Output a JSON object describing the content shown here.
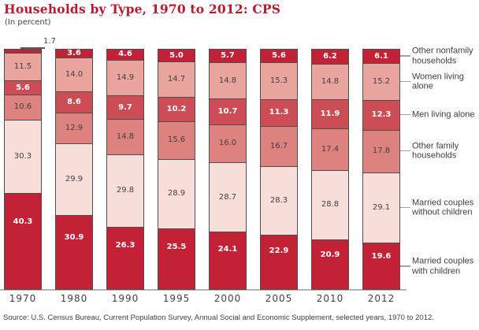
{
  "colors": {
    "title_red": "#b81a2e",
    "dark_red": "#c32136",
    "medium_red": "#cc4d55",
    "medium_salmon": "#dd827e",
    "light_salmon": "#eaa49e",
    "pale_pink": "#f8ded9",
    "axis_gray": "#b5b5b5",
    "text_gray": "#414042"
  },
  "chart_data": {
    "type": "bar",
    "stacked": true,
    "title": "Households by Type, 1970 to 2012: CPS",
    "subtitle": "(In percent)",
    "source": "Source: U.S. Census Bureau, Current Population Survey, Annual Social and Economic Supplement, selected years, 1970 to 2012.",
    "categories": [
      "1970",
      "1980",
      "1990",
      "1995",
      "2000",
      "2005",
      "2010",
      "2012"
    ],
    "ylim": [
      0,
      100
    ],
    "grid": false,
    "legend_position": "right",
    "series": [
      {
        "name": "Married couples with children",
        "legend_lines": [
          "Married couples",
          "with children"
        ],
        "color": "#c32136",
        "label_color": "#ffffff",
        "values": [
          40.3,
          30.9,
          26.3,
          25.5,
          24.1,
          22.9,
          20.9,
          19.6
        ]
      },
      {
        "name": "Married couples without children",
        "legend_lines": [
          "Married couples",
          "without children"
        ],
        "color": "#f8ded9",
        "label_color": "#414042",
        "values": [
          30.3,
          29.9,
          29.8,
          28.9,
          28.7,
          28.3,
          28.8,
          29.1
        ]
      },
      {
        "name": "Other family households",
        "legend_lines": [
          "Other family",
          "households"
        ],
        "color": "#dd827e",
        "label_color": "#414042",
        "values": [
          10.6,
          12.9,
          14.8,
          15.6,
          16.0,
          16.7,
          17.4,
          17.8
        ]
      },
      {
        "name": "Men living alone",
        "legend_lines": [
          "Men living alone"
        ],
        "color": "#cc4d55",
        "label_color": "#ffffff",
        "values": [
          5.6,
          8.6,
          9.7,
          10.2,
          10.7,
          11.3,
          11.9,
          12.3
        ]
      },
      {
        "name": "Women living alone",
        "legend_lines": [
          "Women living",
          "alone"
        ],
        "color": "#eaa49e",
        "label_color": "#414042",
        "values": [
          11.5,
          14.0,
          14.9,
          14.7,
          14.8,
          15.3,
          14.8,
          15.2
        ]
      },
      {
        "name": "Other nonfamily households",
        "legend_lines": [
          "Other nonfamily",
          "households"
        ],
        "color": "#c32136",
        "label_color": "#ffffff",
        "values": [
          1.7,
          3.6,
          4.6,
          5.0,
          5.7,
          5.6,
          6.2,
          6.1
        ]
      }
    ]
  }
}
